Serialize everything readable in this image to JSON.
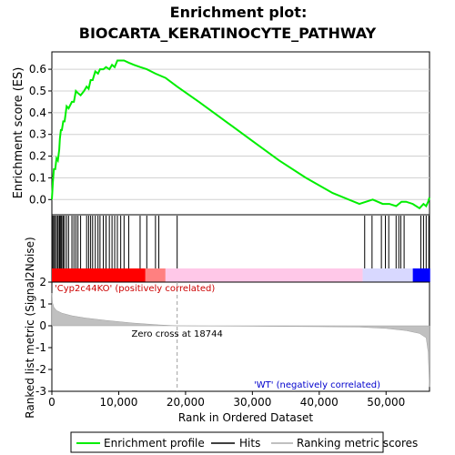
{
  "chart_data": {
    "type": "line",
    "title_line1": "Enrichment plot:",
    "title_line2": "BIOCARTA_KERATINOCYTE_PATHWAY",
    "top_panel": {
      "ylabel": "Enrichment score (ES)",
      "ylim": [
        -0.07,
        0.68
      ],
      "yticks": [
        0.0,
        0.1,
        0.2,
        0.3,
        0.4,
        0.5,
        0.6
      ],
      "ytick_labels": [
        "0.0",
        "0.1",
        "0.2",
        "0.3",
        "0.4",
        "0.5",
        "0.6"
      ],
      "series": [
        {
          "name": "Enrichment profile",
          "color": "#00ee00",
          "x": [
            0,
            150,
            300,
            500,
            700,
            900,
            1100,
            1200,
            1350,
            1500,
            1700,
            1900,
            2200,
            2500,
            3000,
            3300,
            3600,
            3900,
            4300,
            4800,
            5200,
            5500,
            5800,
            6100,
            6500,
            6900,
            7200,
            7700,
            8100,
            8600,
            9000,
            9400,
            9800,
            10300,
            10800,
            11500,
            12300,
            13200,
            14200,
            15500,
            17000,
            18744,
            22000,
            26000,
            30000,
            34000,
            38000,
            42000,
            46000,
            48000,
            49500,
            50500,
            51500,
            52300,
            53000,
            54000,
            55000,
            55600,
            56000,
            56300,
            56500
          ],
          "y": [
            0.0,
            0.08,
            0.14,
            0.14,
            0.19,
            0.18,
            0.23,
            0.28,
            0.32,
            0.32,
            0.36,
            0.36,
            0.43,
            0.42,
            0.45,
            0.45,
            0.5,
            0.49,
            0.48,
            0.5,
            0.52,
            0.51,
            0.55,
            0.55,
            0.59,
            0.58,
            0.6,
            0.6,
            0.61,
            0.6,
            0.62,
            0.61,
            0.64,
            0.64,
            0.64,
            0.63,
            0.62,
            0.61,
            0.6,
            0.58,
            0.56,
            0.52,
            0.45,
            0.36,
            0.27,
            0.18,
            0.1,
            0.03,
            -0.02,
            0.0,
            -0.02,
            -0.02,
            -0.03,
            -0.01,
            -0.01,
            -0.02,
            -0.04,
            -0.02,
            -0.03,
            -0.01,
            0.01
          ]
        }
      ]
    },
    "hits": {
      "name": "Hits",
      "positions": [
        150,
        300,
        500,
        700,
        900,
        1100,
        1200,
        1350,
        1500,
        1700,
        1900,
        2200,
        2500,
        3000,
        3300,
        3600,
        3900,
        4300,
        5200,
        5500,
        5800,
        6100,
        6500,
        6900,
        7200,
        7700,
        8100,
        8600,
        9000,
        9400,
        9800,
        10300,
        10800,
        11500,
        13200,
        14200,
        15500,
        16000,
        18744,
        46800,
        47900,
        49300,
        49900,
        50400,
        51500,
        51900,
        52200,
        52700,
        55200,
        55600,
        56000,
        56400
      ]
    },
    "heatmap": {
      "name": "Ranking metric scores",
      "segments": [
        {
          "from": 0,
          "to": 14000,
          "color": "#ff0000"
        },
        {
          "from": 14000,
          "to": 17000,
          "color": "#ff8080"
        },
        {
          "from": 17000,
          "to": 46500,
          "color": "#ffc8e8"
        },
        {
          "from": 46500,
          "to": 54000,
          "color": "#d8d8ff"
        },
        {
          "from": 54000,
          "to": 56600,
          "color": "#0000ff"
        }
      ]
    },
    "bottom_panel": {
      "ylabel": "Ranked list metric (Signal2Noise)",
      "ylim": [
        -3,
        2
      ],
      "yticks": [
        -3,
        -2,
        -1,
        0,
        1,
        2
      ],
      "ytick_labels": [
        "-3",
        "-2",
        "-1",
        "0",
        "1",
        "2"
      ],
      "series": [
        {
          "name": "Ranking metric scores",
          "color": "#c0c0c0",
          "x": [
            0,
            100,
            300,
            700,
            1500,
            3000,
            5000,
            8000,
            12000,
            16000,
            18744,
            22000,
            30000,
            40000,
            46000,
            50000,
            53000,
            55000,
            56000,
            56300,
            56500
          ],
          "y": [
            1.5,
            1.05,
            0.85,
            0.7,
            0.58,
            0.46,
            0.36,
            0.25,
            0.13,
            0.04,
            0.0,
            -0.01,
            -0.02,
            -0.04,
            -0.06,
            -0.12,
            -0.22,
            -0.35,
            -0.55,
            -1.2,
            -2.8
          ]
        }
      ],
      "zero_cross_label": "Zero cross at 18744",
      "zero_cross_x": 18744,
      "pos_label": "'Cyp2c44KO' (positively correlated)",
      "neg_label": "'WT' (negatively correlated)"
    },
    "x_axis": {
      "xlabel": "Rank in Ordered Dataset",
      "xlim": [
        0,
        56500
      ],
      "xticks": [
        0,
        10000,
        20000,
        30000,
        40000,
        50000
      ],
      "xtick_labels": [
        "0",
        "10,000",
        "20,000",
        "30,000",
        "40,000",
        "50,000"
      ]
    },
    "legend": {
      "placement": "bottom",
      "entries": [
        {
          "label": "Enrichment profile",
          "color": "#00ee00"
        },
        {
          "label": "Hits",
          "color": "#000000"
        },
        {
          "label": "Ranking metric scores",
          "color": "#c0c0c0"
        }
      ]
    }
  }
}
